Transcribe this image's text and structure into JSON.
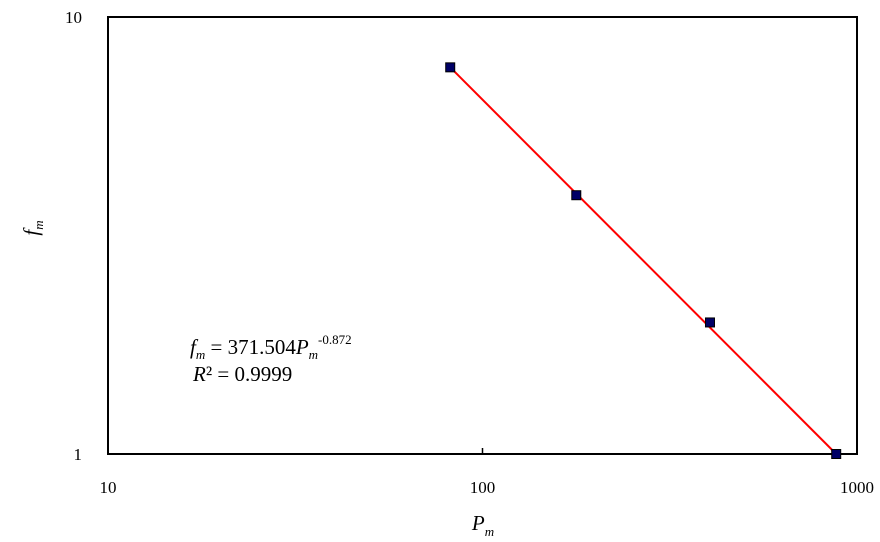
{
  "chart_data": {
    "type": "scatter",
    "x_scale": "log",
    "y_scale": "log",
    "xlim": [
      10,
      1000
    ],
    "ylim": [
      1,
      10
    ],
    "x_ticks": [
      "10",
      "100",
      "1000"
    ],
    "y_ticks": [
      "1",
      "10"
    ],
    "xlabel": {
      "main": "P",
      "sub": "m"
    },
    "ylabel": {
      "main": "f",
      "sub": "m"
    },
    "series": [
      {
        "marker": "square",
        "marker_color": "#000066",
        "points": [
          {
            "x": 82,
            "y": 7.67
          },
          {
            "x": 178,
            "y": 3.91
          },
          {
            "x": 405,
            "y": 2.0
          },
          {
            "x": 880,
            "y": 1.0
          }
        ]
      }
    ],
    "trendline": {
      "type": "power",
      "color": "#ff0000",
      "x_range": [
        82,
        880
      ],
      "coefficient": 371.504,
      "exponent": -0.872
    },
    "annotation": {
      "eq_lhs_main": "f",
      "eq_lhs_sub": "m",
      "eq_mid": " = 371.504",
      "eq_rhs_main": "P",
      "eq_rhs_sub": "m",
      "eq_exp": "-0.872",
      "r2_main": "R",
      "r2_rest": "² = 0.9999"
    },
    "grid": false
  }
}
